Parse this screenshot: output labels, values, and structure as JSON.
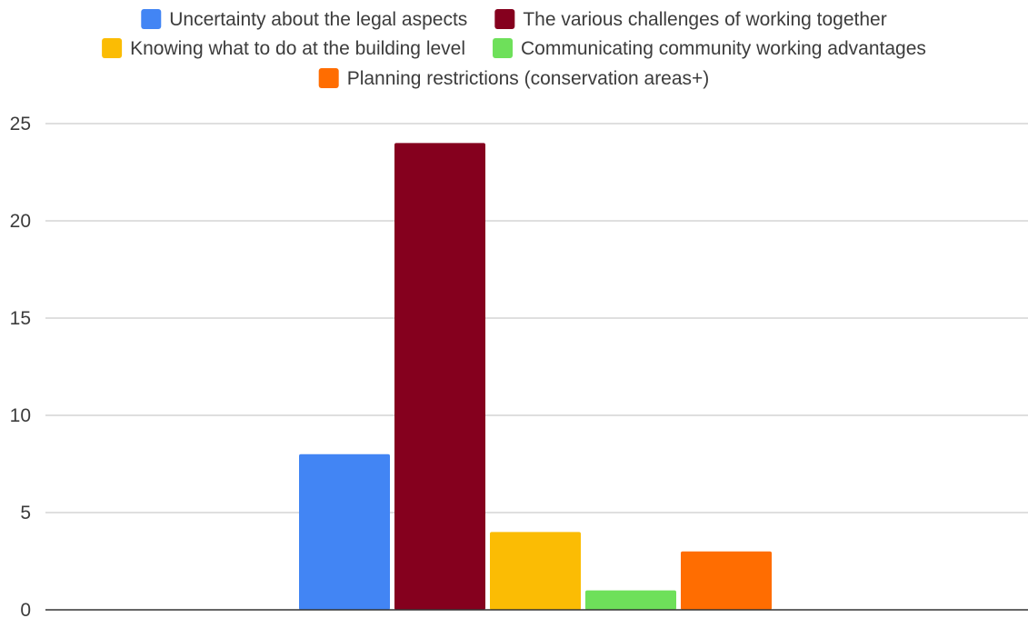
{
  "chart_data": {
    "type": "bar",
    "title": "",
    "xlabel": "",
    "ylabel": "",
    "categories": [
      ""
    ],
    "ylim": [
      0,
      25
    ],
    "yticks": [
      0,
      5,
      10,
      15,
      20,
      25
    ],
    "grid": true,
    "legend_position": "top",
    "series": [
      {
        "name": "Uncertainty about the legal aspects",
        "values": [
          8
        ],
        "color": "#4285f4"
      },
      {
        "name": "The various challenges of working together",
        "values": [
          24
        ],
        "color": "#85001e"
      },
      {
        "name": "Knowing what to do at the building level",
        "values": [
          4
        ],
        "color": "#fbbc04"
      },
      {
        "name": "Communicating community working advantages",
        "values": [
          1
        ],
        "color": "#6ee05a"
      },
      {
        "name": "Planning restrictions (conservation areas+)",
        "values": [
          3
        ],
        "color": "#ff6d01"
      }
    ]
  }
}
